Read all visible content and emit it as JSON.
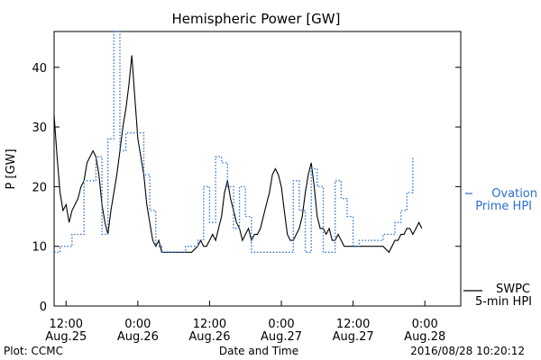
{
  "chart_data": {
    "type": "line",
    "title": "Hemispheric Power [GW]",
    "ylabel": "P [GW]",
    "xlabel": "Date and Time",
    "ylim": [
      0,
      46
    ],
    "xlim": [
      0,
      68
    ],
    "yticks": [
      0,
      10,
      20,
      30,
      40
    ],
    "xticks": [
      {
        "x": 2,
        "line1": "12:00",
        "line2": "Aug.25"
      },
      {
        "x": 14,
        "line1": "0:00",
        "line2": "Aug.26"
      },
      {
        "x": 26,
        "line1": "12:00",
        "line2": "Aug.26"
      },
      {
        "x": 38,
        "line1": "0:00",
        "line2": "Aug.27"
      },
      {
        "x": 50,
        "line1": "12:00",
        "line2": "Aug.27"
      },
      {
        "x": 62,
        "line1": "0:00",
        "line2": "Aug.28"
      }
    ],
    "series": [
      {
        "name": "SWPC 5-min HPI",
        "color": "#000000",
        "style": "solid",
        "points": [
          [
            0,
            32
          ],
          [
            0.5,
            25
          ],
          [
            1,
            19
          ],
          [
            1.5,
            16
          ],
          [
            2,
            17
          ],
          [
            2.5,
            14
          ],
          [
            3,
            16
          ],
          [
            3.5,
            17
          ],
          [
            4,
            18
          ],
          [
            4.5,
            20
          ],
          [
            5,
            21
          ],
          [
            5.5,
            24
          ],
          [
            6,
            25
          ],
          [
            6.5,
            26
          ],
          [
            7,
            25
          ],
          [
            7.5,
            22
          ],
          [
            8,
            17
          ],
          [
            8.5,
            14
          ],
          [
            9,
            12
          ],
          [
            9.5,
            16
          ],
          [
            10,
            19
          ],
          [
            10.5,
            22
          ],
          [
            11,
            26
          ],
          [
            11.5,
            30
          ],
          [
            12,
            33
          ],
          [
            12.5,
            37
          ],
          [
            13,
            42
          ],
          [
            13.5,
            35
          ],
          [
            14,
            28
          ],
          [
            14.5,
            25
          ],
          [
            15,
            22
          ],
          [
            15.5,
            17
          ],
          [
            16,
            14
          ],
          [
            16.5,
            11
          ],
          [
            17,
            10
          ],
          [
            17.5,
            11
          ],
          [
            18,
            9
          ],
          [
            18.5,
            9
          ],
          [
            19,
            9
          ],
          [
            20,
            9
          ],
          [
            21,
            9
          ],
          [
            22,
            9
          ],
          [
            23,
            9
          ],
          [
            24,
            10
          ],
          [
            24.5,
            11
          ],
          [
            25,
            10
          ],
          [
            25.5,
            10
          ],
          [
            26,
            11
          ],
          [
            26.5,
            12
          ],
          [
            27,
            11
          ],
          [
            27.5,
            13
          ],
          [
            28,
            15
          ],
          [
            28.5,
            19
          ],
          [
            29,
            21
          ],
          [
            29.5,
            18
          ],
          [
            30,
            16
          ],
          [
            30.5,
            14
          ],
          [
            31,
            13
          ],
          [
            31.5,
            11
          ],
          [
            32,
            12
          ],
          [
            32.5,
            13
          ],
          [
            33,
            11
          ],
          [
            33.5,
            12
          ],
          [
            34,
            12
          ],
          [
            34.5,
            13
          ],
          [
            35,
            15
          ],
          [
            35.5,
            17
          ],
          [
            36,
            19
          ],
          [
            36.5,
            22
          ],
          [
            37,
            23
          ],
          [
            37.5,
            22
          ],
          [
            38,
            20
          ],
          [
            38.5,
            16
          ],
          [
            39,
            12
          ],
          [
            39.5,
            11
          ],
          [
            40,
            11
          ],
          [
            40.5,
            12
          ],
          [
            41,
            13
          ],
          [
            41.5,
            15
          ],
          [
            42,
            19
          ],
          [
            42.5,
            22
          ],
          [
            43,
            24
          ],
          [
            43.5,
            20
          ],
          [
            44,
            15
          ],
          [
            44.5,
            13
          ],
          [
            45,
            13
          ],
          [
            45.5,
            12
          ],
          [
            46,
            13
          ],
          [
            46.5,
            11
          ],
          [
            47,
            11
          ],
          [
            47.5,
            12
          ],
          [
            48,
            11
          ],
          [
            48.5,
            10
          ],
          [
            49,
            10
          ],
          [
            50,
            10
          ],
          [
            51,
            10
          ],
          [
            52,
            10
          ],
          [
            53,
            10
          ],
          [
            54,
            10
          ],
          [
            55,
            10
          ],
          [
            56,
            9
          ],
          [
            56.5,
            10
          ],
          [
            57,
            11
          ],
          [
            57.5,
            11
          ],
          [
            58,
            12
          ],
          [
            58.5,
            12
          ],
          [
            59,
            13
          ],
          [
            59.5,
            13
          ],
          [
            60,
            12
          ],
          [
            60.5,
            13
          ],
          [
            61,
            14
          ],
          [
            61.5,
            13
          ]
        ]
      },
      {
        "name": "Ovation Prime HPI",
        "color": "#2a6fcf",
        "style": "dotted",
        "points": [
          [
            0,
            9
          ],
          [
            1,
            9
          ],
          [
            1,
            10
          ],
          [
            3,
            10
          ],
          [
            3,
            12
          ],
          [
            5,
            12
          ],
          [
            5,
            21
          ],
          [
            7,
            21
          ],
          [
            7,
            25
          ],
          [
            8,
            25
          ],
          [
            8,
            12
          ],
          [
            9,
            12
          ],
          [
            9,
            28
          ],
          [
            10,
            28
          ],
          [
            10,
            46
          ],
          [
            11,
            46
          ],
          [
            11,
            26
          ],
          [
            12,
            26
          ],
          [
            12,
            29
          ],
          [
            15,
            29
          ],
          [
            15,
            22
          ],
          [
            16,
            22
          ],
          [
            16,
            16
          ],
          [
            17,
            16
          ],
          [
            17,
            10
          ],
          [
            18,
            10
          ],
          [
            18,
            9
          ],
          [
            22,
            9
          ],
          [
            22,
            10
          ],
          [
            24,
            10
          ],
          [
            24,
            11
          ],
          [
            25,
            11
          ],
          [
            25,
            20
          ],
          [
            26,
            20
          ],
          [
            26,
            14
          ],
          [
            27,
            14
          ],
          [
            27,
            25
          ],
          [
            28,
            25
          ],
          [
            28,
            24
          ],
          [
            29,
            24
          ],
          [
            29,
            20
          ],
          [
            30,
            20
          ],
          [
            30,
            13
          ],
          [
            31,
            13
          ],
          [
            31,
            20
          ],
          [
            32,
            20
          ],
          [
            32,
            15
          ],
          [
            33,
            15
          ],
          [
            33,
            9
          ],
          [
            40,
            9
          ],
          [
            40,
            21
          ],
          [
            41,
            21
          ],
          [
            41,
            16
          ],
          [
            42,
            16
          ],
          [
            42,
            9
          ],
          [
            43,
            9
          ],
          [
            43,
            23
          ],
          [
            44,
            23
          ],
          [
            44,
            20
          ],
          [
            45,
            20
          ],
          [
            45,
            9
          ],
          [
            47,
            9
          ],
          [
            47,
            21
          ],
          [
            48,
            21
          ],
          [
            48,
            18
          ],
          [
            49,
            18
          ],
          [
            49,
            15
          ],
          [
            50,
            15
          ],
          [
            50,
            10
          ],
          [
            51,
            10
          ],
          [
            51,
            11
          ],
          [
            55,
            11
          ],
          [
            55,
            12
          ],
          [
            57,
            12
          ],
          [
            57,
            14
          ],
          [
            58,
            14
          ],
          [
            58,
            16
          ],
          [
            59,
            16
          ],
          [
            59,
            19
          ],
          [
            60,
            19
          ],
          [
            60,
            25
          ]
        ]
      }
    ],
    "legend": {
      "placement": "right",
      "ovation_label_line1": "Ovation",
      "ovation_label_line2": "Prime HPI",
      "swpc_label_line1": "SWPC",
      "swpc_label_line2": "5-min HPI"
    }
  },
  "footer": {
    "plot_credit": "Plot: CCMC",
    "timestamp": "2016/08/28 10:20:12"
  }
}
